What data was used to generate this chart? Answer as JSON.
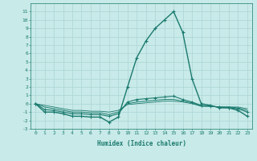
{
  "x": [
    0,
    1,
    2,
    3,
    4,
    5,
    6,
    7,
    8,
    9,
    10,
    11,
    12,
    13,
    14,
    15,
    16,
    17,
    18,
    19,
    20,
    21,
    22,
    23
  ],
  "line1": [
    0,
    -1,
    -1,
    -1.2,
    -1.5,
    -1.5,
    -1.6,
    -1.6,
    -2.2,
    -1.6,
    2.0,
    5.5,
    7.5,
    9.0,
    10.0,
    11.0,
    8.5,
    3.0,
    0.0,
    -0.2,
    -0.5,
    -0.5,
    -0.8,
    -1.5
  ],
  "line2": [
    0,
    -0.7,
    -0.8,
    -1.0,
    -1.2,
    -1.2,
    -1.3,
    -1.3,
    -1.5,
    -1.2,
    0.2,
    0.5,
    0.6,
    0.7,
    0.8,
    0.9,
    0.5,
    0.2,
    -0.2,
    -0.3,
    -0.4,
    -0.5,
    -0.6,
    -1.0
  ],
  "line3": [
    0,
    -0.4,
    -0.6,
    -0.8,
    -1.0,
    -1.0,
    -1.1,
    -1.1,
    -1.3,
    -1.0,
    0.0,
    0.2,
    0.3,
    0.4,
    0.5,
    0.5,
    0.3,
    0.1,
    -0.3,
    -0.3,
    -0.4,
    -0.4,
    -0.5,
    -0.8
  ],
  "line4": [
    0,
    -0.2,
    -0.4,
    -0.6,
    -0.8,
    -0.8,
    -0.9,
    -0.9,
    -1.0,
    -0.8,
    -0.1,
    0.0,
    0.1,
    0.2,
    0.3,
    0.3,
    0.2,
    0.0,
    -0.3,
    -0.3,
    -0.4,
    -0.4,
    -0.4,
    -0.6
  ],
  "xlabel": "Humidex (Indice chaleur)",
  "color": "#1a7a6e",
  "bg_color": "#c8eae8",
  "grid_color": "#b0d8d8",
  "ylim": [
    -3,
    12
  ],
  "xlim": [
    -0.5,
    23.5
  ],
  "yticks": [
    -3,
    -2,
    -1,
    0,
    1,
    2,
    3,
    4,
    5,
    6,
    7,
    8,
    9,
    10,
    11
  ],
  "xticks": [
    0,
    1,
    2,
    3,
    4,
    5,
    6,
    7,
    8,
    9,
    10,
    11,
    12,
    13,
    14,
    15,
    16,
    17,
    18,
    19,
    20,
    21,
    22,
    23
  ]
}
